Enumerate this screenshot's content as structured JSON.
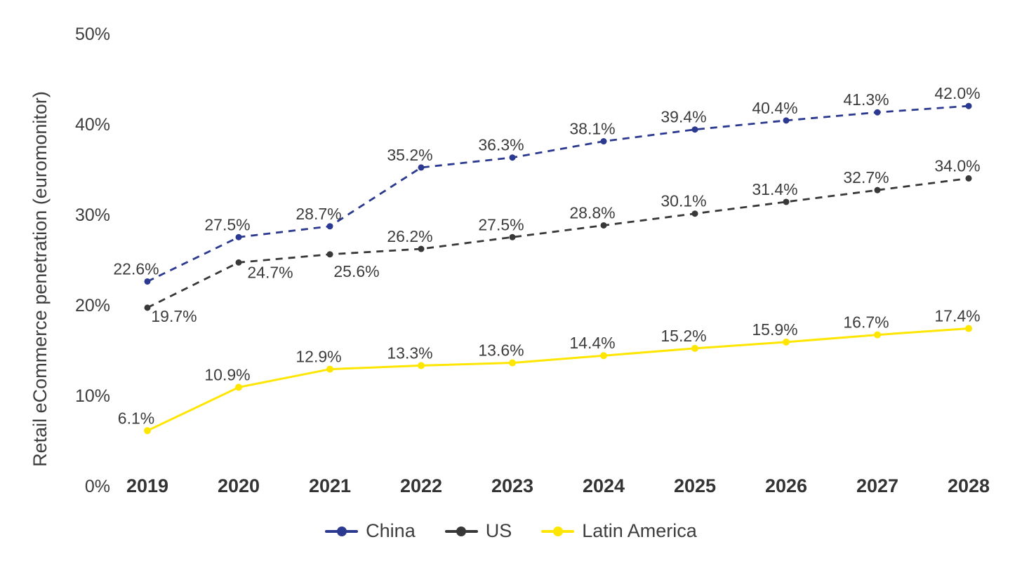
{
  "page": {
    "background": "#ffffff",
    "text_color": "#3d3d3d"
  },
  "chart_data": {
    "type": "line",
    "title": "",
    "xlabel": "",
    "ylabel": "Retail eCommerce penetration (euromonitor)",
    "x_tick_labels": [
      "2019",
      "2020",
      "2021",
      "2022",
      "2023",
      "2024",
      "2025",
      "2026",
      "2027",
      "2028"
    ],
    "y_tick_labels": [
      "0%",
      "10%",
      "20%",
      "30%",
      "40%",
      "50%"
    ],
    "y_tick_values": [
      0,
      10,
      20,
      30,
      40,
      50
    ],
    "ylim": [
      0,
      50
    ],
    "grid": false,
    "axis_lines": false,
    "legend_position": "bottom",
    "series": [
      {
        "name": "China",
        "color": "#2b3990",
        "line_style": "dashed",
        "marker": "dot",
        "values": [
          22.6,
          27.5,
          28.7,
          35.2,
          36.3,
          38.1,
          39.4,
          40.4,
          41.3,
          42.0
        ],
        "point_labels": [
          "22.6%",
          "27.5%",
          "28.7%",
          "35.2%",
          "36.3%",
          "38.1%",
          "39.4%",
          "40.4%",
          "41.3%",
          "42.0%"
        ]
      },
      {
        "name": "US",
        "color": "#383838",
        "line_style": "dashed",
        "marker": "dot",
        "values": [
          19.7,
          24.7,
          25.6,
          26.2,
          27.5,
          28.8,
          30.1,
          31.4,
          32.7,
          34.0
        ],
        "point_labels": [
          "19.7%",
          "24.7%",
          "25.6%",
          "26.2%",
          "27.5%",
          "28.8%",
          "30.1%",
          "31.4%",
          "32.7%",
          "34.0%"
        ]
      },
      {
        "name": "Latin America",
        "color": "#ffe600",
        "line_style": "solid",
        "marker": "dot",
        "values": [
          6.1,
          10.9,
          12.9,
          13.3,
          13.6,
          14.4,
          15.2,
          15.9,
          16.7,
          17.4
        ],
        "point_labels": [
          "6.1%",
          "10.9%",
          "12.9%",
          "13.3%",
          "13.6%",
          "14.4%",
          "15.2%",
          "15.9%",
          "16.7%",
          "17.4%"
        ]
      }
    ],
    "default_label_offset": [
      -16,
      -10
    ],
    "label_offsets": {
      "US": {
        "0": [
          38,
          20
        ],
        "1": [
          45,
          22
        ],
        "2": [
          38,
          32
        ]
      }
    },
    "label_color": "#3c3c3c",
    "tick_color": "#3d3d3d",
    "x_tick_color": "#343434"
  }
}
